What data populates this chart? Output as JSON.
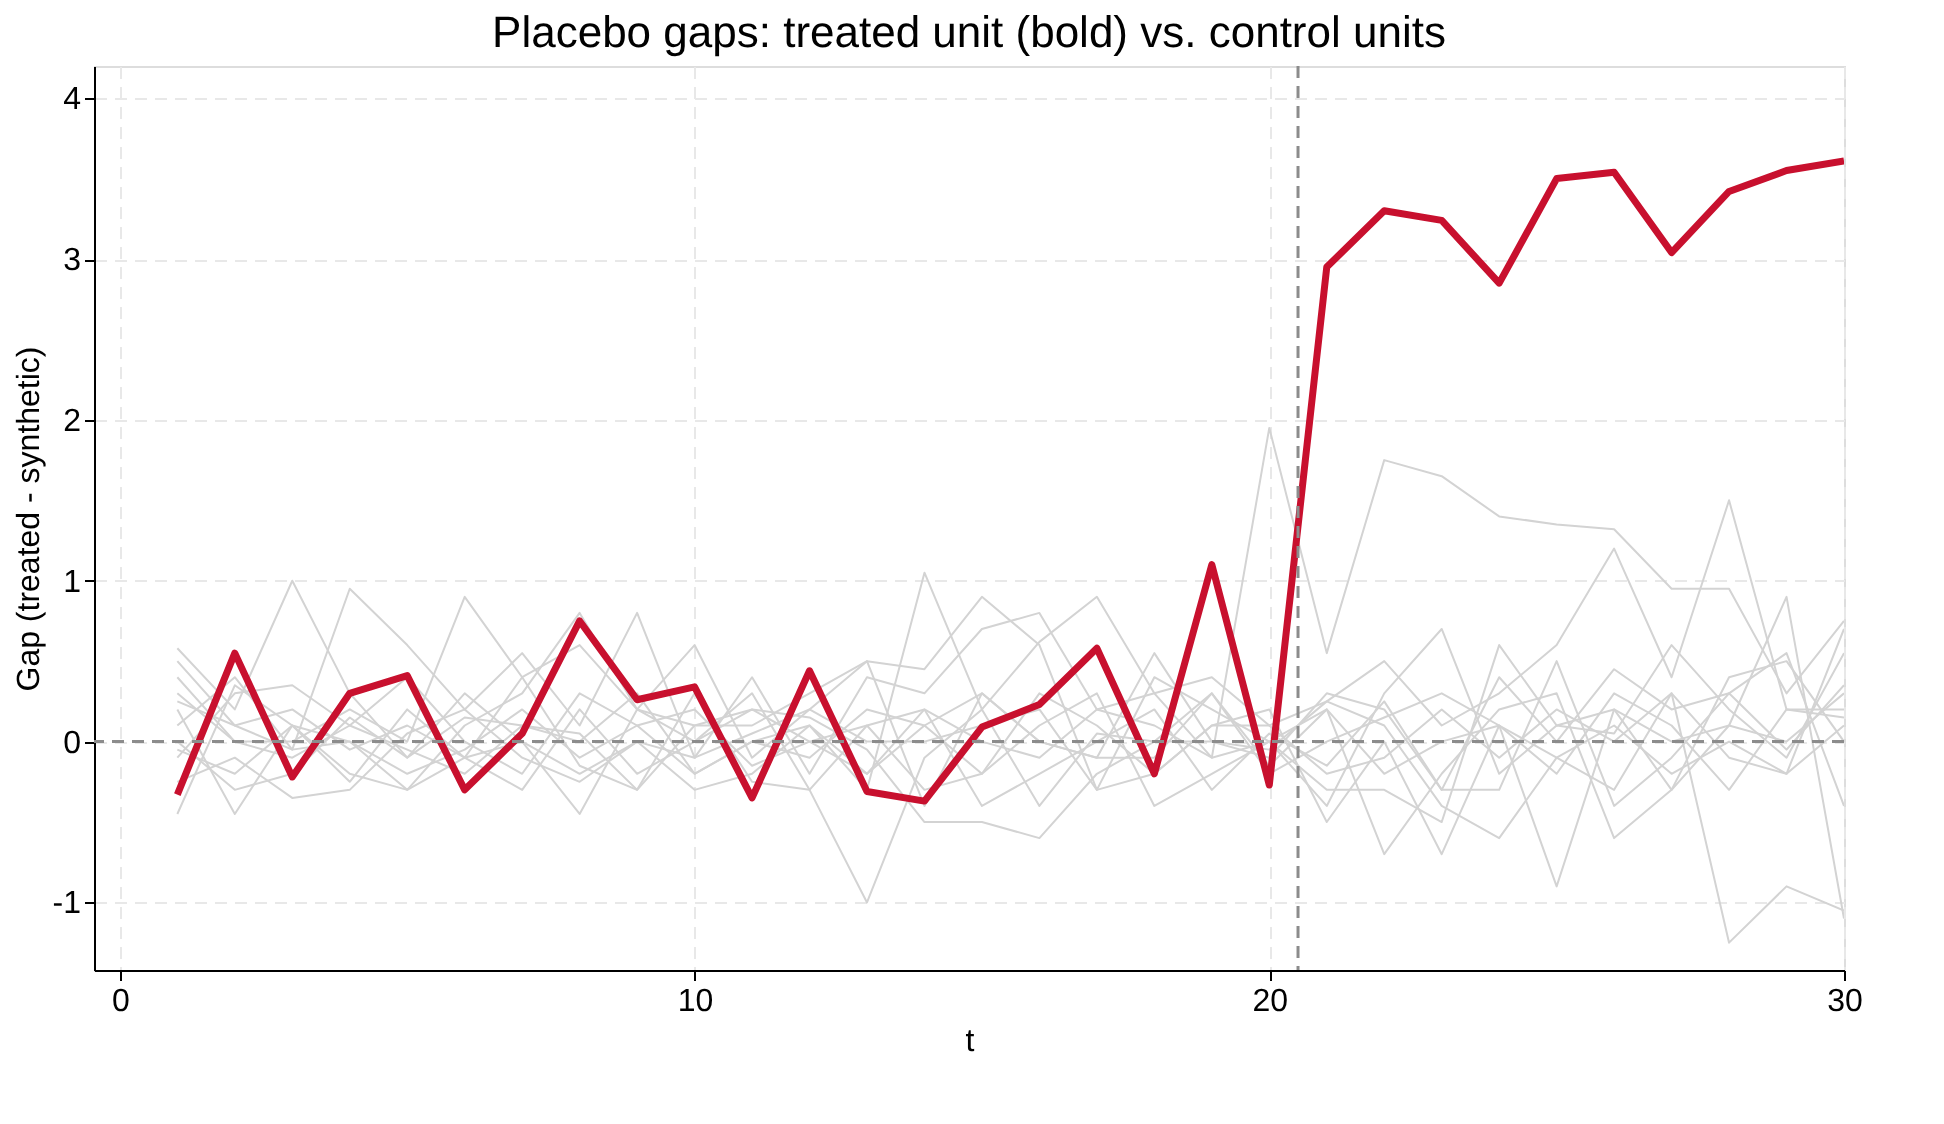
{
  "chart_data": {
    "type": "line",
    "title": "Placebo gaps: treated unit (bold) vs. control units",
    "xlabel": "t",
    "ylabel": "Gap (treated - synthetic)",
    "x": [
      1,
      2,
      3,
      4,
      5,
      6,
      7,
      8,
      9,
      10,
      11,
      12,
      13,
      14,
      15,
      16,
      17,
      18,
      19,
      20,
      21,
      22,
      23,
      24,
      25,
      26,
      27,
      28,
      29,
      30
    ],
    "xlim": [
      -0.45,
      30
    ],
    "ylim": [
      -1.42,
      4.2
    ],
    "xticks": [
      0,
      10,
      20,
      30
    ],
    "yticks": [
      -1,
      0,
      1,
      2,
      3,
      4
    ],
    "grid": true,
    "ref_lines": [
      {
        "axis": "y",
        "value": 0,
        "color": "#8c8c8c",
        "line_style": "dashed"
      },
      {
        "axis": "x",
        "value": 20.5,
        "color": "#8c8c8c",
        "line_style": "dashed"
      }
    ],
    "series": [
      {
        "color": "#d3d3d3",
        "values": [
          0.58,
          0.2,
          1.0,
          0.3,
          -0.1,
          0.15,
          0.1,
          0.0,
          0.3,
          -0.2,
          0.0,
          0.1,
          -0.3,
          1.05,
          0.2,
          0.62,
          0.9,
          0.3,
          -0.1,
          1.95,
          0.55,
          1.75,
          1.65,
          1.4,
          1.35,
          1.32,
          0.95,
          0.95,
          0.3,
          0.75
        ]
      },
      {
        "color": "#d3d3d3",
        "values": [
          0.5,
          0.1,
          -0.05,
          0.95,
          0.6,
          0.2,
          0.55,
          0.1,
          0.8,
          -0.1,
          0.4,
          -0.2,
          0.4,
          0.3,
          0.7,
          0.8,
          0.2,
          0.3,
          0.4,
          0.1,
          0.25,
          0.5,
          0.1,
          0.3,
          0.6,
          1.2,
          0.4,
          1.5,
          0.2,
          0.2
        ]
      },
      {
        "color": "#d3d3d3",
        "values": [
          0.3,
          0.0,
          0.0,
          0.2,
          0.0,
          0.9,
          0.4,
          0.6,
          0.2,
          0.1,
          0.1,
          0.3,
          0.5,
          0.45,
          0.9,
          0.6,
          -0.3,
          0.4,
          0.2,
          0.0,
          -0.4,
          0.3,
          0.7,
          -0.2,
          0.1,
          0.05,
          0.6,
          0.2,
          -0.1,
          0.55
        ]
      },
      {
        "color": "#d3d3d3",
        "values": [
          0.1,
          0.4,
          -0.05,
          0.0,
          -0.3,
          0.1,
          0.3,
          0.8,
          0.2,
          0.6,
          -0.1,
          0.2,
          0.5,
          -0.4,
          0.3,
          0.0,
          -0.1,
          0.55,
          0.0,
          -0.1,
          0.3,
          0.2,
          -0.3,
          0.4,
          0.0,
          0.45,
          0.2,
          0.3,
          0.55,
          -0.4
        ]
      },
      {
        "color": "#d3d3d3",
        "values": [
          -0.1,
          0.3,
          0.35,
          0.1,
          0.4,
          0.0,
          -0.2,
          0.3,
          0.1,
          -0.2,
          0.0,
          -0.1,
          0.2,
          0.1,
          -0.2,
          0.3,
          0.1,
          -0.2,
          0.1,
          0.2,
          -0.5,
          0.0,
          -0.7,
          0.1,
          -0.1,
          -0.3,
          0.3,
          -1.25,
          -0.9,
          -1.05
        ]
      },
      {
        "color": "#d3d3d3",
        "values": [
          -0.05,
          -0.2,
          0.1,
          -0.25,
          0.2,
          -0.1,
          0.0,
          -0.45,
          0.2,
          0.0,
          0.3,
          -0.3,
          -1.0,
          -0.1,
          0.2,
          -0.4,
          0.05,
          0.0,
          0.3,
          -0.15,
          0.2,
          -0.2,
          0.0,
          0.1,
          -0.9,
          0.2,
          0.0,
          0.1,
          0.9,
          -1.1
        ]
      },
      {
        "color": "#d3d3d3",
        "values": [
          0.2,
          -0.45,
          0.1,
          0.0,
          -0.2,
          -0.05,
          0.2,
          -0.1,
          0.1,
          0.2,
          -0.15,
          0.0,
          0.1,
          -0.3,
          -0.2,
          0.1,
          0.3,
          -0.4,
          -0.2,
          0.0,
          0.2,
          -0.7,
          -0.2,
          0.2,
          0.3,
          -0.6,
          -0.3,
          0.1,
          0.0,
          0.3
        ]
      },
      {
        "color": "#d3d3d3",
        "values": [
          -0.25,
          -0.1,
          -0.35,
          -0.3,
          0.05,
          0.2,
          -0.1,
          -0.25,
          0.0,
          -0.3,
          -0.2,
          0.1,
          -0.2,
          0.2,
          0.0,
          -0.1,
          0.2,
          0.1,
          -0.1,
          0.0,
          -0.3,
          -0.3,
          -0.5,
          0.6,
          0.1,
          0.2,
          -0.3,
          0.4,
          0.5,
          0.0
        ]
      },
      {
        "color": "#d3d3d3",
        "values": [
          0.4,
          0.0,
          -0.1,
          0.1,
          -0.05,
          -0.2,
          0.1,
          0.05,
          -0.3,
          0.1,
          0.2,
          0.15,
          -0.05,
          -0.5,
          -0.5,
          -0.6,
          -0.2,
          0.0,
          0.0,
          -0.05,
          0.25,
          0.1,
          -0.4,
          -0.6,
          -0.1,
          0.1,
          -0.2,
          0.0,
          -0.2,
          0.1
        ]
      },
      {
        "color": "#d3d3d3",
        "values": [
          0.25,
          0.1,
          0.2,
          -0.05,
          0.1,
          -0.1,
          -0.3,
          0.2,
          -0.2,
          0.0,
          0.2,
          0.0,
          -0.2,
          0.1,
          0.3,
          0.0,
          -0.1,
          -0.1,
          0.3,
          -0.2,
          0.0,
          0.15,
          0.3,
          0.1,
          -0.2,
          0.3,
          0.1,
          -0.3,
          0.2,
          0.15
        ]
      },
      {
        "color": "#d3d3d3",
        "values": [
          -0.45,
          0.35,
          0.1,
          -0.2,
          -0.3,
          -0.1,
          0.4,
          -0.15,
          -0.3,
          0.3,
          -0.25,
          -0.3,
          0.1,
          0.2,
          -0.4,
          -0.2,
          0.0,
          0.2,
          -0.3,
          0.05,
          -0.15,
          0.25,
          -0.3,
          -0.3,
          0.5,
          -0.4,
          -0.1,
          0.3,
          -0.05,
          0.35
        ]
      },
      {
        "color": "#d3d3d3",
        "values": [
          0.0,
          -0.3,
          -0.2,
          0.15,
          -0.1,
          0.3,
          0.0,
          -0.2,
          0.0,
          -0.1,
          0.05,
          0.2,
          0.0,
          0.0,
          0.1,
          0.2,
          -0.3,
          -0.2,
          0.1,
          0.1,
          -0.2,
          -0.1,
          0.2,
          -0.1,
          0.2,
          0.0,
          0.3,
          -0.1,
          -0.2,
          0.7
        ]
      },
      {
        "color": "#c8102e",
        "values": [
          -0.33,
          0.55,
          -0.22,
          0.3,
          0.41,
          -0.3,
          0.05,
          0.75,
          0.26,
          0.34,
          -0.35,
          0.44,
          -0.31,
          -0.37,
          0.09,
          0.23,
          0.58,
          -0.2,
          1.1,
          -0.27,
          2.95,
          3.3,
          3.24,
          2.85,
          3.5,
          3.54,
          3.04,
          3.42,
          3.55,
          3.61
        ]
      }
    ]
  }
}
